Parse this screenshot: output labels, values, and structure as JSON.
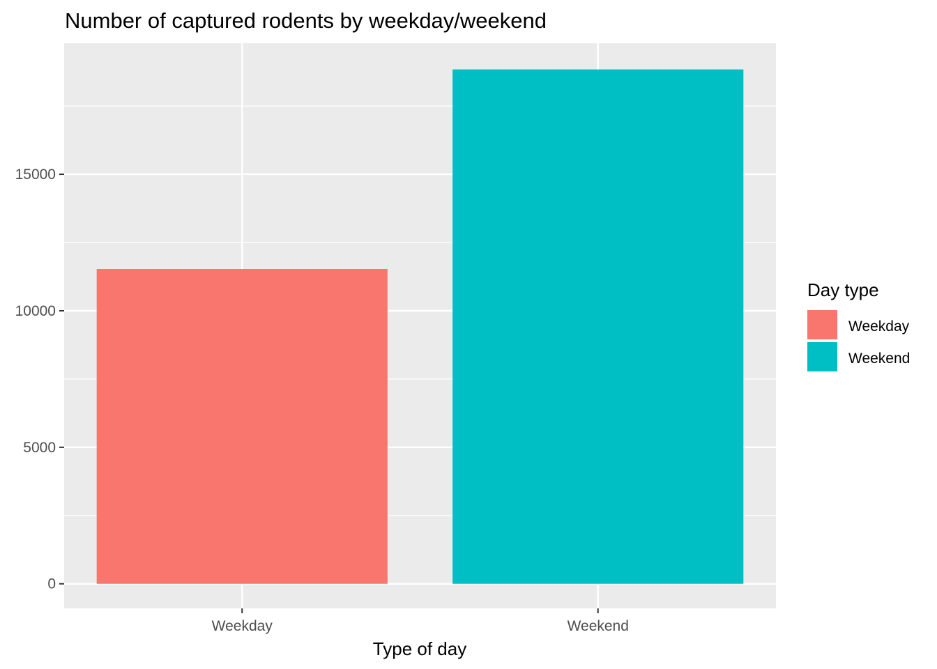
{
  "chart_data": {
    "type": "bar",
    "title": "Number of captured rodents by weekday/weekend",
    "xlabel": "Type of day",
    "ylabel": "",
    "categories": [
      "Weekday",
      "Weekend"
    ],
    "values": [
      11530,
      18840
    ],
    "colors": [
      "#F8766D",
      "#00BFC4"
    ],
    "ylim": [
      -900,
      19800
    ],
    "yticks": [
      0,
      5000,
      10000,
      15000
    ],
    "ytick_labels": [
      "0",
      "5000",
      "10000",
      "15000"
    ],
    "grid": true,
    "panel_background": "#EBEBEB",
    "legend": {
      "title": "Day type",
      "position": "right",
      "entries": [
        {
          "label": "Weekday",
          "color": "#F8766D"
        },
        {
          "label": "Weekend",
          "color": "#00BFC4"
        }
      ]
    }
  }
}
